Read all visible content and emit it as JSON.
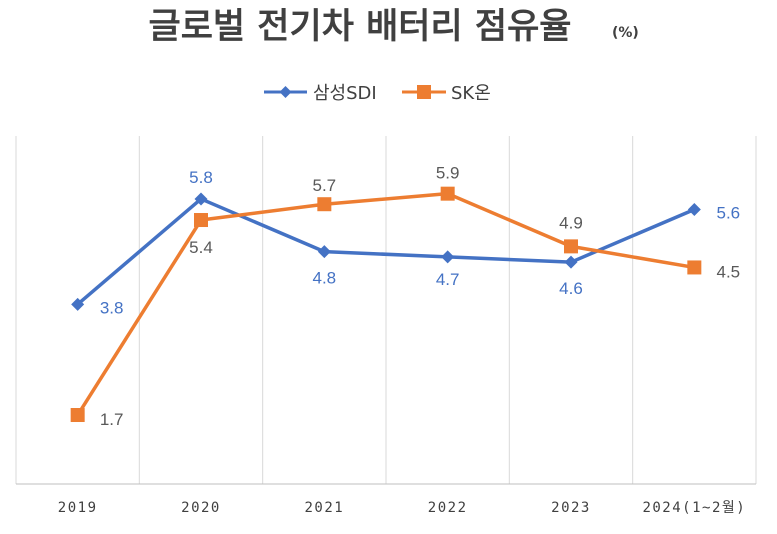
{
  "chart_data": {
    "type": "line",
    "title": "글로벌 전기차 배터리 점유율",
    "unit": "(%)",
    "categories": [
      "2019",
      "2020",
      "2021",
      "2022",
      "2023",
      "2024(1~2월)"
    ],
    "series": [
      {
        "name": "삼성SDI",
        "color": "#4472C4",
        "marker": "diamond",
        "values": [
          3.8,
          5.8,
          4.8,
          4.7,
          4.6,
          5.6
        ],
        "labels": [
          "3.8",
          "5.8",
          "4.8",
          "4.7",
          "4.6",
          "5.6"
        ]
      },
      {
        "name": "SK온",
        "color": "#ED7D31",
        "marker": "square",
        "values": [
          1.7,
          5.4,
          5.7,
          5.9,
          4.9,
          4.5
        ],
        "labels": [
          "1.7",
          "5.4",
          "5.7",
          "5.9",
          "4.9",
          "4.5"
        ]
      }
    ],
    "legend_position": "top-center",
    "grid": "vertical"
  }
}
